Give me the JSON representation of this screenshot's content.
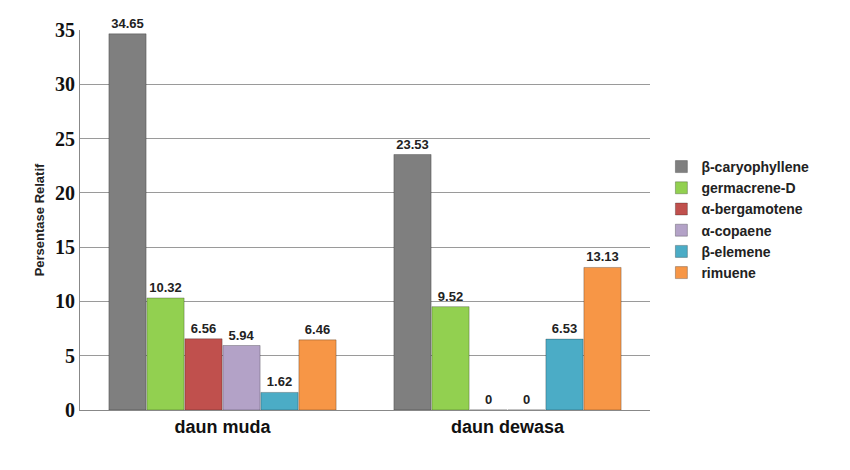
{
  "chart_data": {
    "type": "bar",
    "ylabel": "Persentase Relatif",
    "categories": [
      "daun muda",
      "daun dewasa"
    ],
    "series": [
      {
        "name": "β-caryophyllene",
        "color": "#7f7f7f",
        "values": [
          34.65,
          23.53
        ]
      },
      {
        "name": "germacrene-D",
        "color": "#92d050",
        "values": [
          10.32,
          9.52
        ]
      },
      {
        "name": "α-bergamotene",
        "color": "#c0504d",
        "values": [
          6.56,
          0
        ]
      },
      {
        "name": "α-copaene",
        "color": "#b3a2c7",
        "values": [
          5.94,
          0
        ]
      },
      {
        "name": "β-elemene",
        "color": "#4bacc6",
        "values": [
          1.62,
          6.53
        ]
      },
      {
        "name": "rimuene",
        "color": "#f79646",
        "values": [
          6.46,
          13.13
        ]
      }
    ],
    "ylim": [
      0,
      35
    ],
    "yticks": [
      0,
      5,
      10,
      15,
      20,
      25,
      30,
      35
    ],
    "grid": true,
    "legend": "right",
    "data_labels": true
  }
}
